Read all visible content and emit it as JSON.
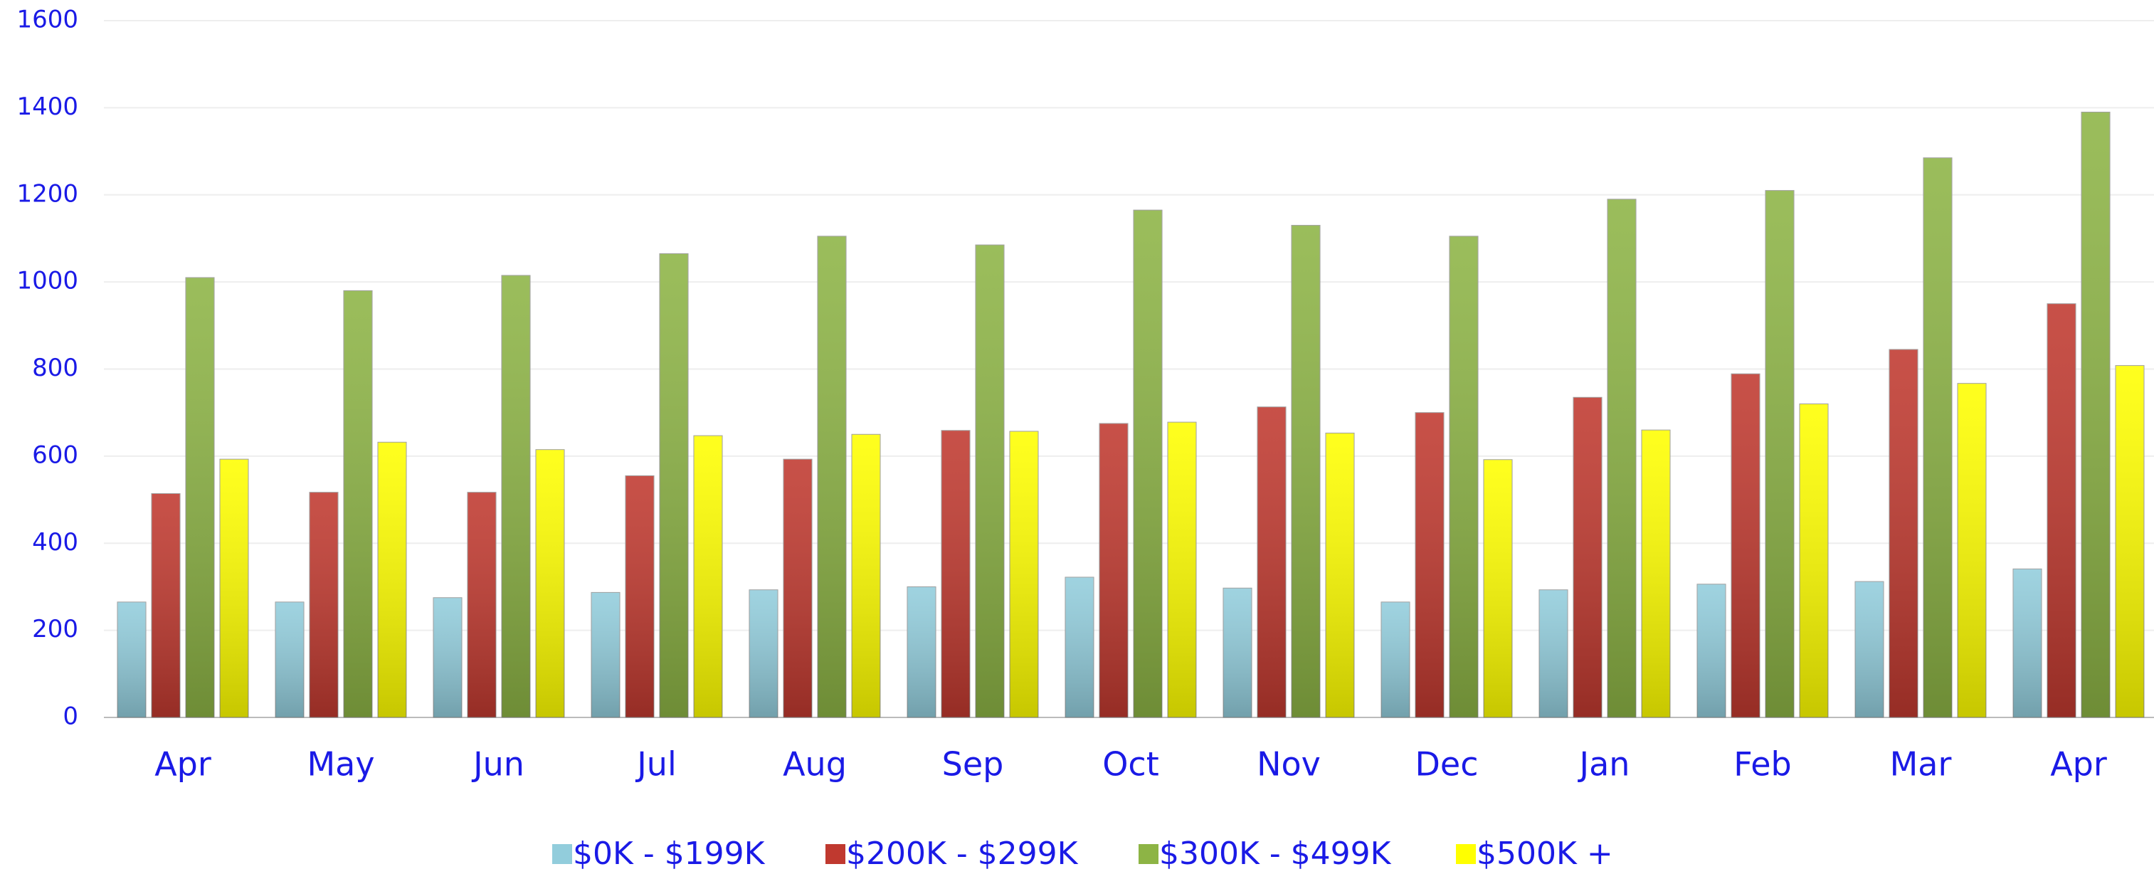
{
  "chart_data": {
    "type": "bar",
    "categories": [
      "Apr",
      "May",
      "Jun",
      "Jul",
      "Aug",
      "Sep",
      "Oct",
      "Nov",
      "Dec",
      "Jan",
      "Feb",
      "Mar",
      "Apr"
    ],
    "series": [
      {
        "name": "$0K - $199K",
        "color": "#92cddc",
        "values": [
          265,
          265,
          275,
          287,
          293,
          300,
          322,
          297,
          265,
          293,
          306,
          312,
          341
        ]
      },
      {
        "name": "$200K - $299K",
        "color": "#c0392f",
        "values": [
          514,
          517,
          517,
          555,
          593,
          659,
          675,
          713,
          700,
          735,
          789,
          845,
          950
        ]
      },
      {
        "name": "$300K - $499K",
        "color": "#8db445",
        "values": [
          1010,
          980,
          1015,
          1065,
          1105,
          1085,
          1165,
          1130,
          1105,
          1190,
          1210,
          1285,
          1390
        ]
      },
      {
        "name": "$500K +",
        "color": "#ffff00",
        "values": [
          593,
          632,
          615,
          647,
          650,
          657,
          678,
          653,
          592,
          660,
          720,
          767,
          808
        ]
      }
    ],
    "ylim": [
      0,
      1600
    ],
    "yticks": [
      0,
      200,
      400,
      600,
      800,
      1000,
      1200,
      1400,
      1600
    ],
    "grid": true
  }
}
